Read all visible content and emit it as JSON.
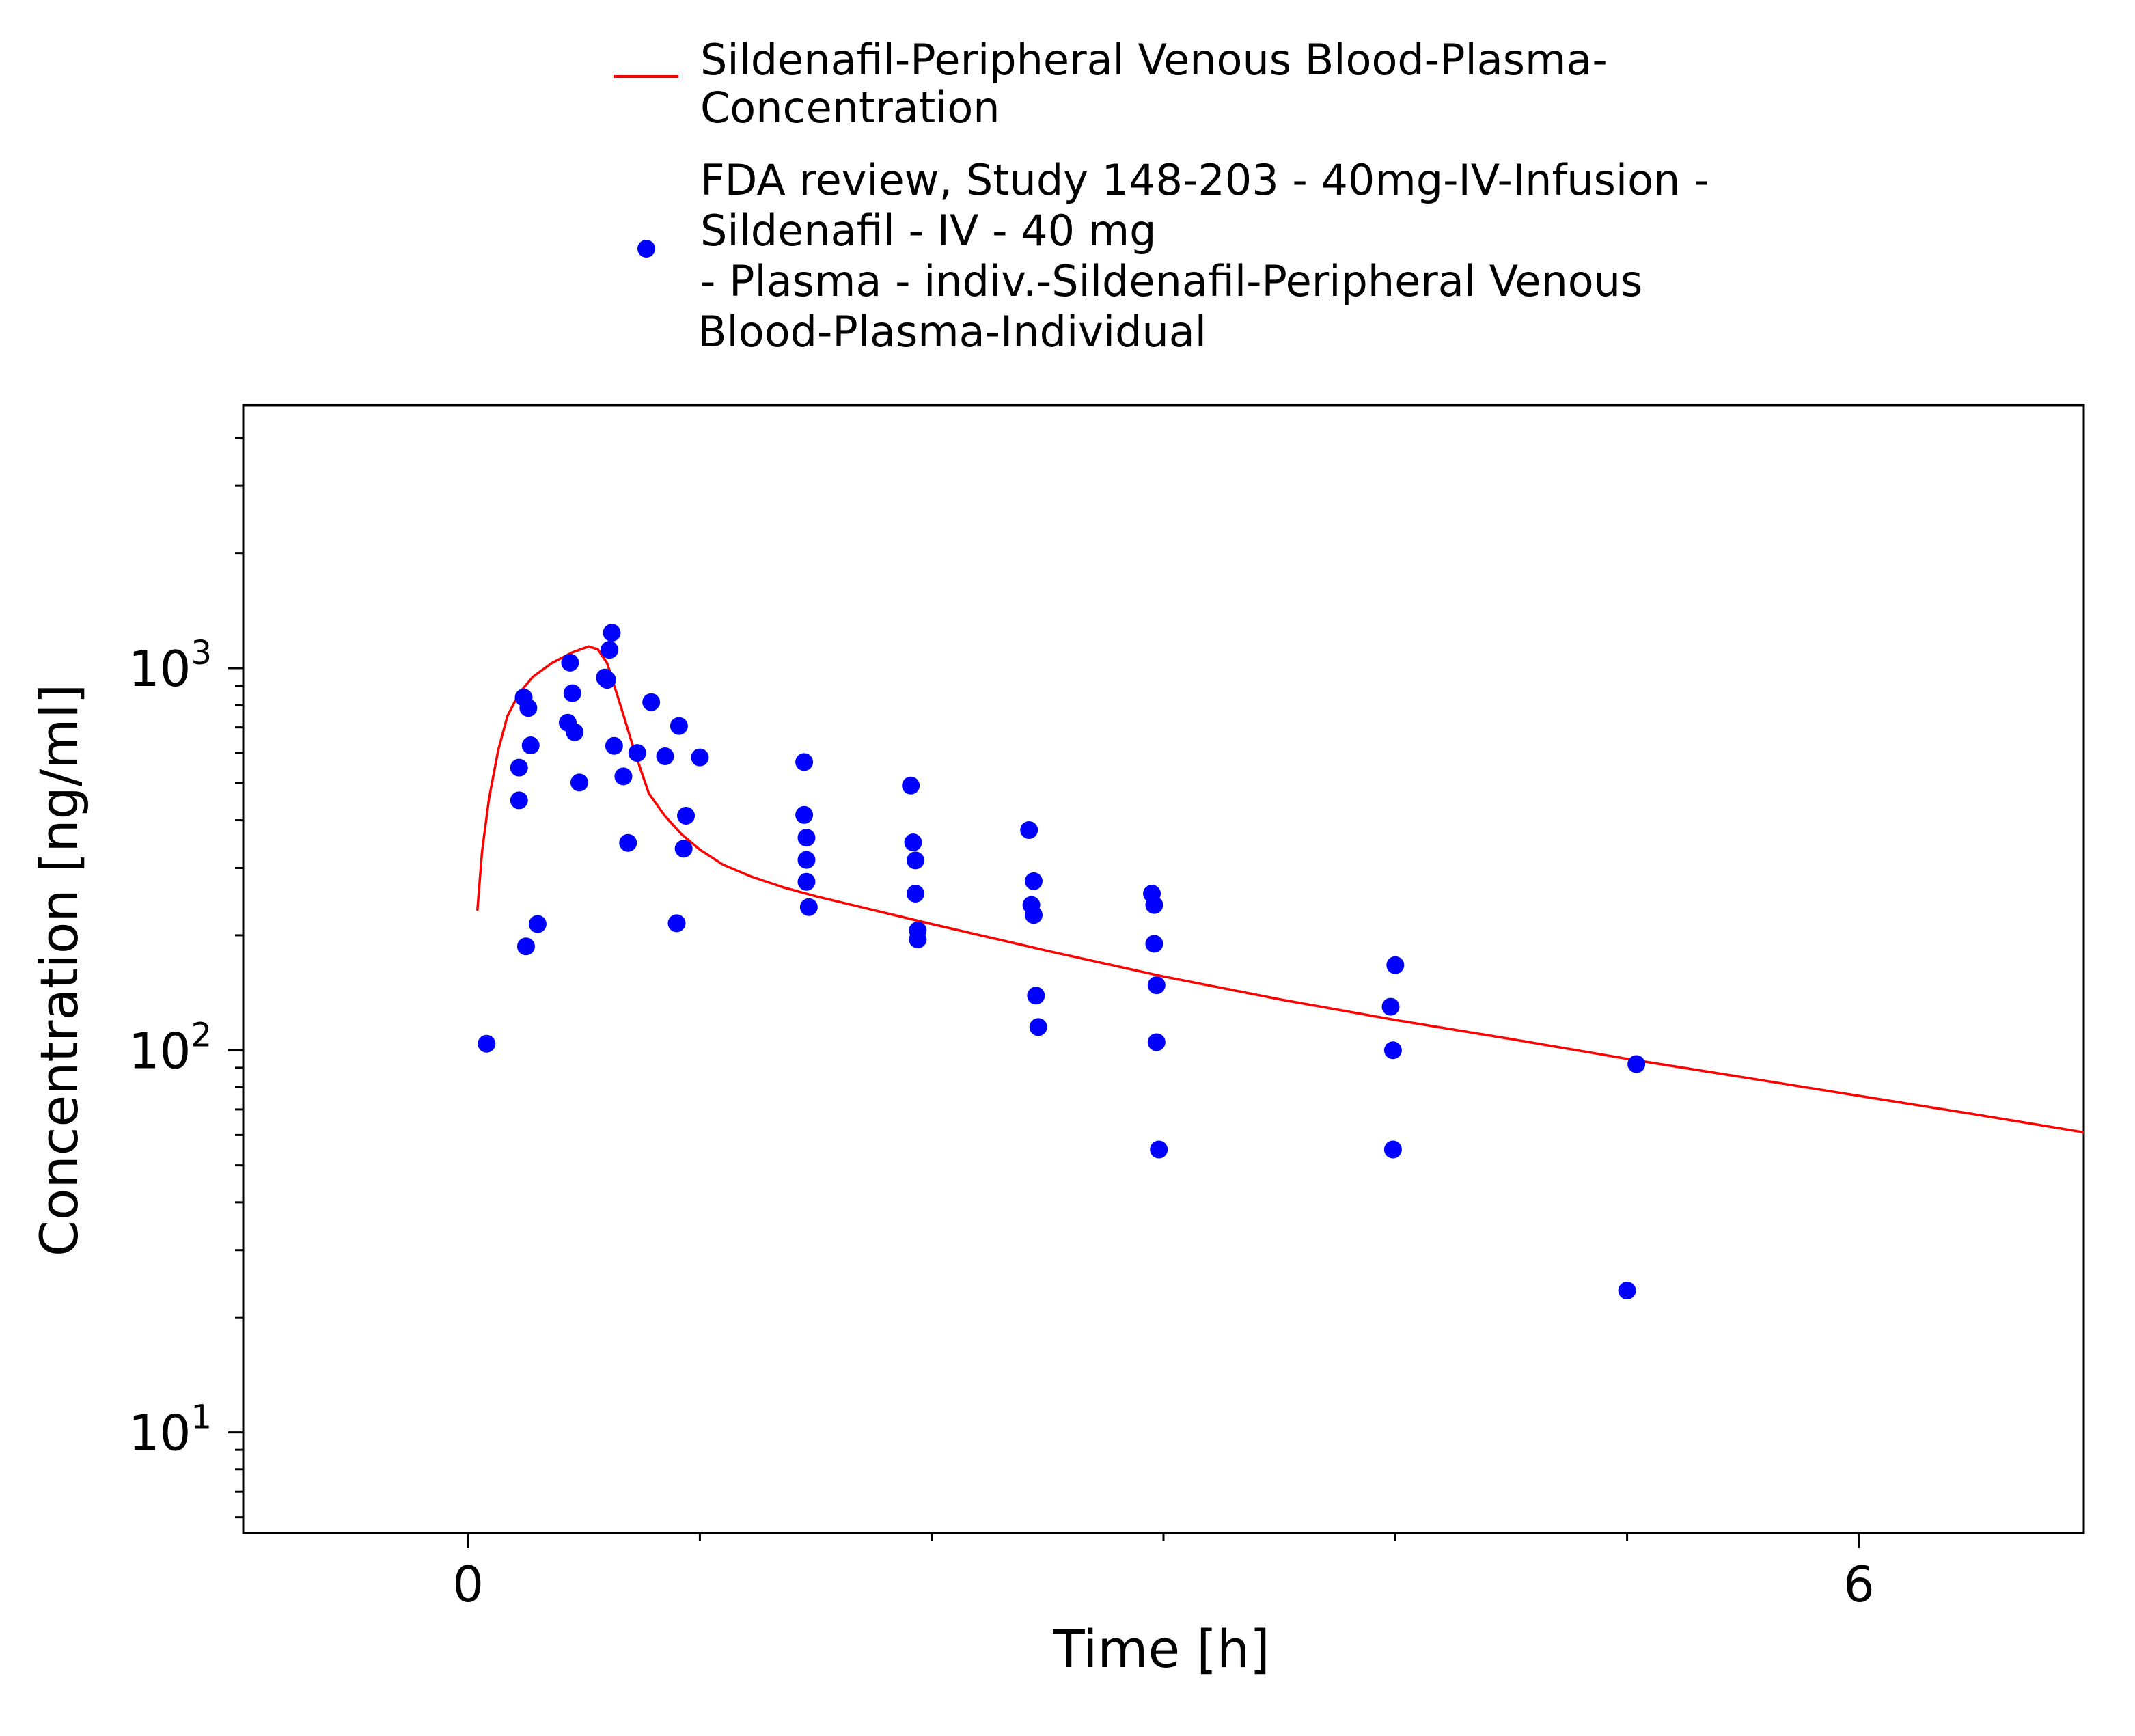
{
  "legend": [
    {
      "label": "Sildenafil-Peripheral Venous Blood-Plasma-\nConcentration",
      "type": "line",
      "color": "#ff0000"
    },
    {
      "label": "FDA review, Study 148-203 - 40mg-IV-Infusion -\nSildenafil - IV - 40 mg\n- Plasma - indiv.-Sildenafil-Peripheral Venous\nBlood-Plasma-Individual",
      "type": "scatter",
      "color": "#0000ff"
    }
  ],
  "chart_data": {
    "type": "line",
    "xlabel": "Time [h]",
    "ylabel": "Concentration [ng/ml]",
    "xlim": [
      -0.97,
      6.97
    ],
    "ylim": [
      5.45,
      4880
    ],
    "yscale": "log",
    "grid": false,
    "legend_position": "top",
    "x_ticks": [
      0,
      6
    ],
    "y_ticks": [
      {
        "value": 10,
        "label": "10",
        "exp": "1"
      },
      {
        "value": 100,
        "label": "10",
        "exp": "2"
      },
      {
        "value": 1000,
        "label": "10",
        "exp": "3"
      }
    ],
    "series": [
      {
        "name": "Sildenafil-Peripheral Venous Blood-Plasma-Concentration",
        "type": "line",
        "color": "#ff0000",
        "x": [
          0.04,
          0.06,
          0.09,
          0.13,
          0.17,
          0.22,
          0.28,
          0.36,
          0.45,
          0.52,
          0.56,
          0.6,
          0.66,
          0.72,
          0.78,
          0.85,
          0.92,
          1.0,
          1.1,
          1.22,
          1.36,
          1.5,
          2.0,
          2.5,
          3.0,
          3.5,
          4.0,
          4.5,
          5.0,
          5.5,
          6.0,
          6.5,
          6.97
        ],
        "y": [
          232,
          330,
          455,
          610,
          750,
          860,
          950,
          1030,
          1100,
          1140,
          1120,
          1030,
          790,
          600,
          470,
          410,
          368,
          335,
          306,
          285,
          267,
          253,
          214,
          182,
          156,
          136,
          120,
          107,
          95,
          85,
          76,
          68,
          61
        ]
      },
      {
        "name": "FDA review, Study 148-203 - 40mg-IV-Infusion - Sildenafil - IV - 40 mg - Plasma - indiv.-Sildenafil-Peripheral Venous Blood-Plasma-Individual",
        "type": "scatter",
        "color": "#0000ff",
        "x": [
          0.08,
          0.22,
          0.22,
          0.24,
          0.25,
          0.26,
          0.27,
          0.3,
          0.43,
          0.44,
          0.45,
          0.46,
          0.48,
          0.59,
          0.6,
          0.61,
          0.62,
          0.63,
          0.67,
          0.69,
          0.73,
          0.79,
          0.85,
          0.9,
          0.91,
          0.93,
          0.94,
          1.0,
          1.45,
          1.45,
          1.46,
          1.46,
          1.46,
          1.47,
          1.91,
          1.92,
          1.93,
          1.93,
          1.94,
          1.94,
          2.42,
          2.43,
          2.44,
          2.44,
          2.45,
          2.46,
          2.95,
          2.96,
          2.96,
          2.97,
          2.97,
          2.98,
          3.98,
          3.99,
          3.99,
          4.0,
          5.0,
          5.04
        ],
        "y": [
          104,
          451,
          549,
          838,
          187,
          787,
          628,
          214,
          720,
          1034,
          860,
          680,
          502,
          945,
          932,
          1117,
          1238,
          626,
          521,
          349,
          600,
          815,
          588,
          215,
          706,
          337,
          411,
          584,
          568,
          413,
          360,
          315,
          276,
          237,
          493,
          350,
          314,
          257,
          206,
          195,
          377,
          240,
          277,
          226,
          139,
          115,
          257,
          240,
          190,
          148,
          105,
          55,
          130,
          100,
          55,
          167,
          23.5,
          92
        ]
      }
    ]
  }
}
